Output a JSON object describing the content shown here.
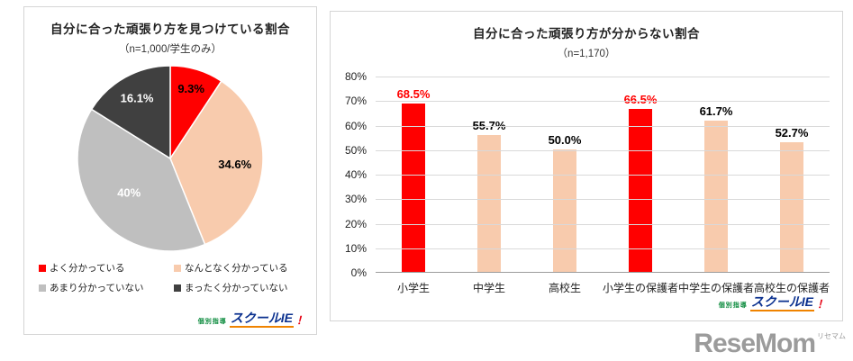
{
  "pie_panel": {
    "title": "自分に合った頑張り方を見つけている割合",
    "subtitle": "（n=1,000/学生のみ）"
  },
  "bar_panel": {
    "title": "自分に合った頑張り方が分からない割合",
    "subtitle": "（n=1,170）"
  },
  "logos": {
    "school_ie_prefix": "個別指導",
    "school_ie_name": "スクールIE",
    "school_ie_mark": "！",
    "resemom": "ReseMom",
    "resemom_small": "リセマム"
  },
  "chart_data": [
    {
      "type": "pie",
      "title": "自分に合った頑張り方を見つけている割合",
      "subtitle": "（n=1,000/学生のみ）",
      "labels": [
        "よく分かっている",
        "なんとなく分かっている",
        "あまり分かっていない",
        "まったく分かっていない"
      ],
      "values": [
        9.3,
        34.6,
        40,
        16.1
      ],
      "display_labels": [
        "9.3%",
        "34.6%",
        "40%",
        "16.1%"
      ],
      "colors": [
        "#ff0000",
        "#f8cbad",
        "#bfbfbf",
        "#404040"
      ],
      "label_colors": [
        "#000000",
        "#000000",
        "#ffffff",
        "#ffffff"
      ],
      "label_radius": [
        0.78,
        0.7,
        0.58,
        0.74
      ],
      "start_angle_deg": 0,
      "direction": "clockwise",
      "legend_position": "bottom"
    },
    {
      "type": "bar",
      "title": "自分に合った頑張り方が分からない割合",
      "subtitle": "（n=1,170）",
      "categories": [
        "小学生",
        "中学生",
        "高校生",
        "小学生の保護者",
        "中学生の保護者",
        "高校生の保護者"
      ],
      "values": [
        68.5,
        55.7,
        50.0,
        66.5,
        61.7,
        52.7
      ],
      "display_labels": [
        "68.5%",
        "55.7%",
        "50.0%",
        "66.5%",
        "61.7%",
        "52.7%"
      ],
      "bar_colors": [
        "#ff0000",
        "#f8cbad",
        "#f8cbad",
        "#ff0000",
        "#f8cbad",
        "#f8cbad"
      ],
      "value_label_colors": [
        "#ff0000",
        "#000000",
        "#000000",
        "#ff0000",
        "#000000",
        "#000000"
      ],
      "y_ticks": [
        "80%",
        "70%",
        "60%",
        "50%",
        "40%",
        "30%",
        "20%",
        "10%",
        "0%"
      ],
      "ylim": [
        0,
        80
      ],
      "grid": true
    }
  ]
}
